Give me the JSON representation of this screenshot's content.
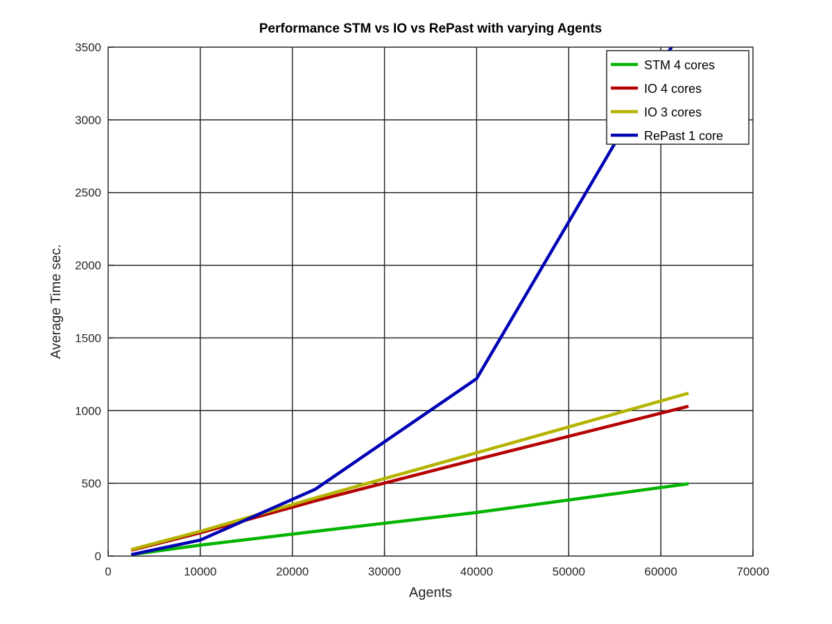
{
  "chart_data": {
    "type": "line",
    "title": "Performance STM vs IO vs RePast with varying Agents",
    "xlabel": "Agents",
    "ylabel": "Average Time sec.",
    "xlim": [
      0,
      70000
    ],
    "ylim": [
      0,
      3500
    ],
    "xticks": [
      0,
      10000,
      20000,
      30000,
      40000,
      50000,
      60000,
      70000
    ],
    "yticks": [
      0,
      500,
      1000,
      1500,
      2000,
      2500,
      3000,
      3500
    ],
    "xtick_labels": [
      "0",
      "10000",
      "20000",
      "30000",
      "40000",
      "50000",
      "60000",
      "70000"
    ],
    "ytick_labels": [
      "0",
      "500",
      "1000",
      "1500",
      "2000",
      "2500",
      "3000",
      "3500"
    ],
    "grid": true,
    "legend_position": "top-right",
    "series": [
      {
        "name": "STM 4 cores",
        "color": "#00b400",
        "x": [
          2500,
          10000,
          22500,
          40000,
          63000
        ],
        "y": [
          10,
          75,
          170,
          300,
          497
        ]
      },
      {
        "name": "IO 4 cores",
        "color": "#b40000",
        "x": [
          2500,
          10000,
          22500,
          40000,
          63000
        ],
        "y": [
          40,
          160,
          380,
          665,
          1030
        ]
      },
      {
        "name": "IO 3 cores",
        "color": "#b4b400",
        "x": [
          2500,
          10000,
          22500,
          40000,
          63000
        ],
        "y": [
          45,
          170,
          400,
          710,
          1120
        ]
      },
      {
        "name": "RePast 1 core",
        "color": "#0000b4",
        "x": [
          2500,
          10000,
          22500,
          40000,
          63000
        ],
        "y": [
          10,
          110,
          460,
          1220,
          3700
        ]
      }
    ]
  }
}
